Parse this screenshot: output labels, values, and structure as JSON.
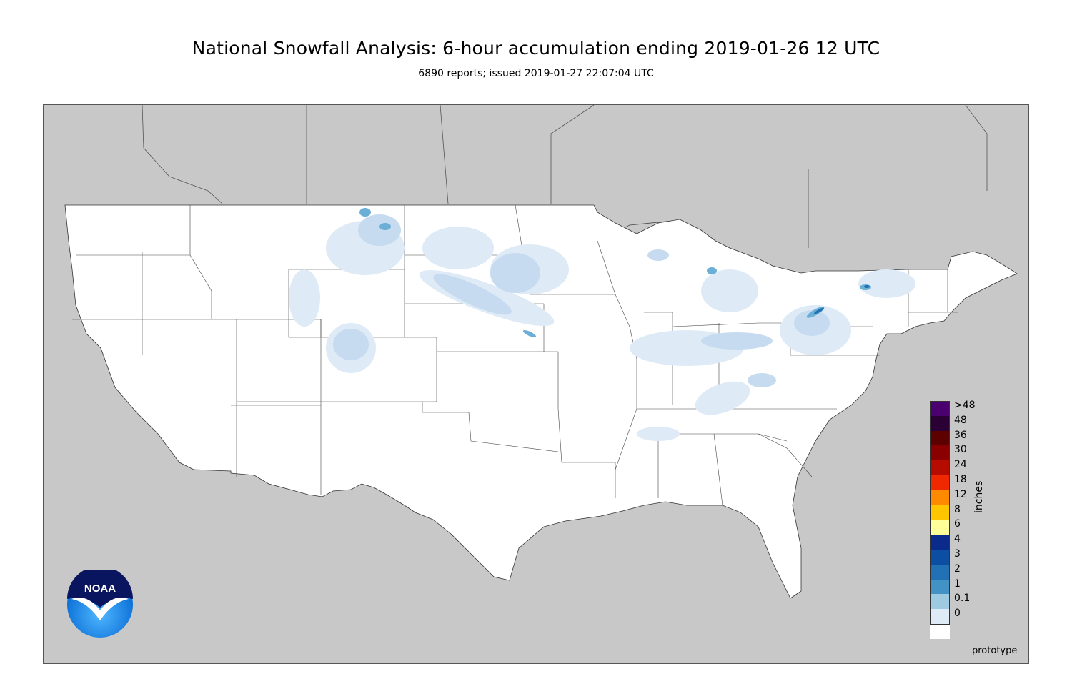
{
  "title": "National Snowfall Analysis: 6-hour accumulation ending 2019-01-26 12 UTC",
  "subtitle": "6890 reports; issued 2019-01-27 22:07:04 UTC",
  "legend": {
    "units": "inches",
    "items": [
      {
        "label": ">48",
        "color": "#4b0070"
      },
      {
        "label": "48",
        "color": "#2a0035"
      },
      {
        "label": "36",
        "color": "#5c0000"
      },
      {
        "label": "30",
        "color": "#8a0000"
      },
      {
        "label": "24",
        "color": "#b60c00"
      },
      {
        "label": "18",
        "color": "#ef2800"
      },
      {
        "label": "12",
        "color": "#ff8a00"
      },
      {
        "label": "8",
        "color": "#ffc600"
      },
      {
        "label": "6",
        "color": "#ffff99"
      },
      {
        "label": "4",
        "color": "#0a2a8c"
      },
      {
        "label": "3",
        "color": "#0b4ea2"
      },
      {
        "label": "2",
        "color": "#2271b5"
      },
      {
        "label": "1",
        "color": "#4292c6"
      },
      {
        "label": "0.1",
        "color": "#9ecae1"
      },
      {
        "label": "0",
        "color": "#deebf7"
      }
    ],
    "bottom_color": "#ffffff"
  },
  "logo_text": "NOAA",
  "prototype_label": "prototype"
}
